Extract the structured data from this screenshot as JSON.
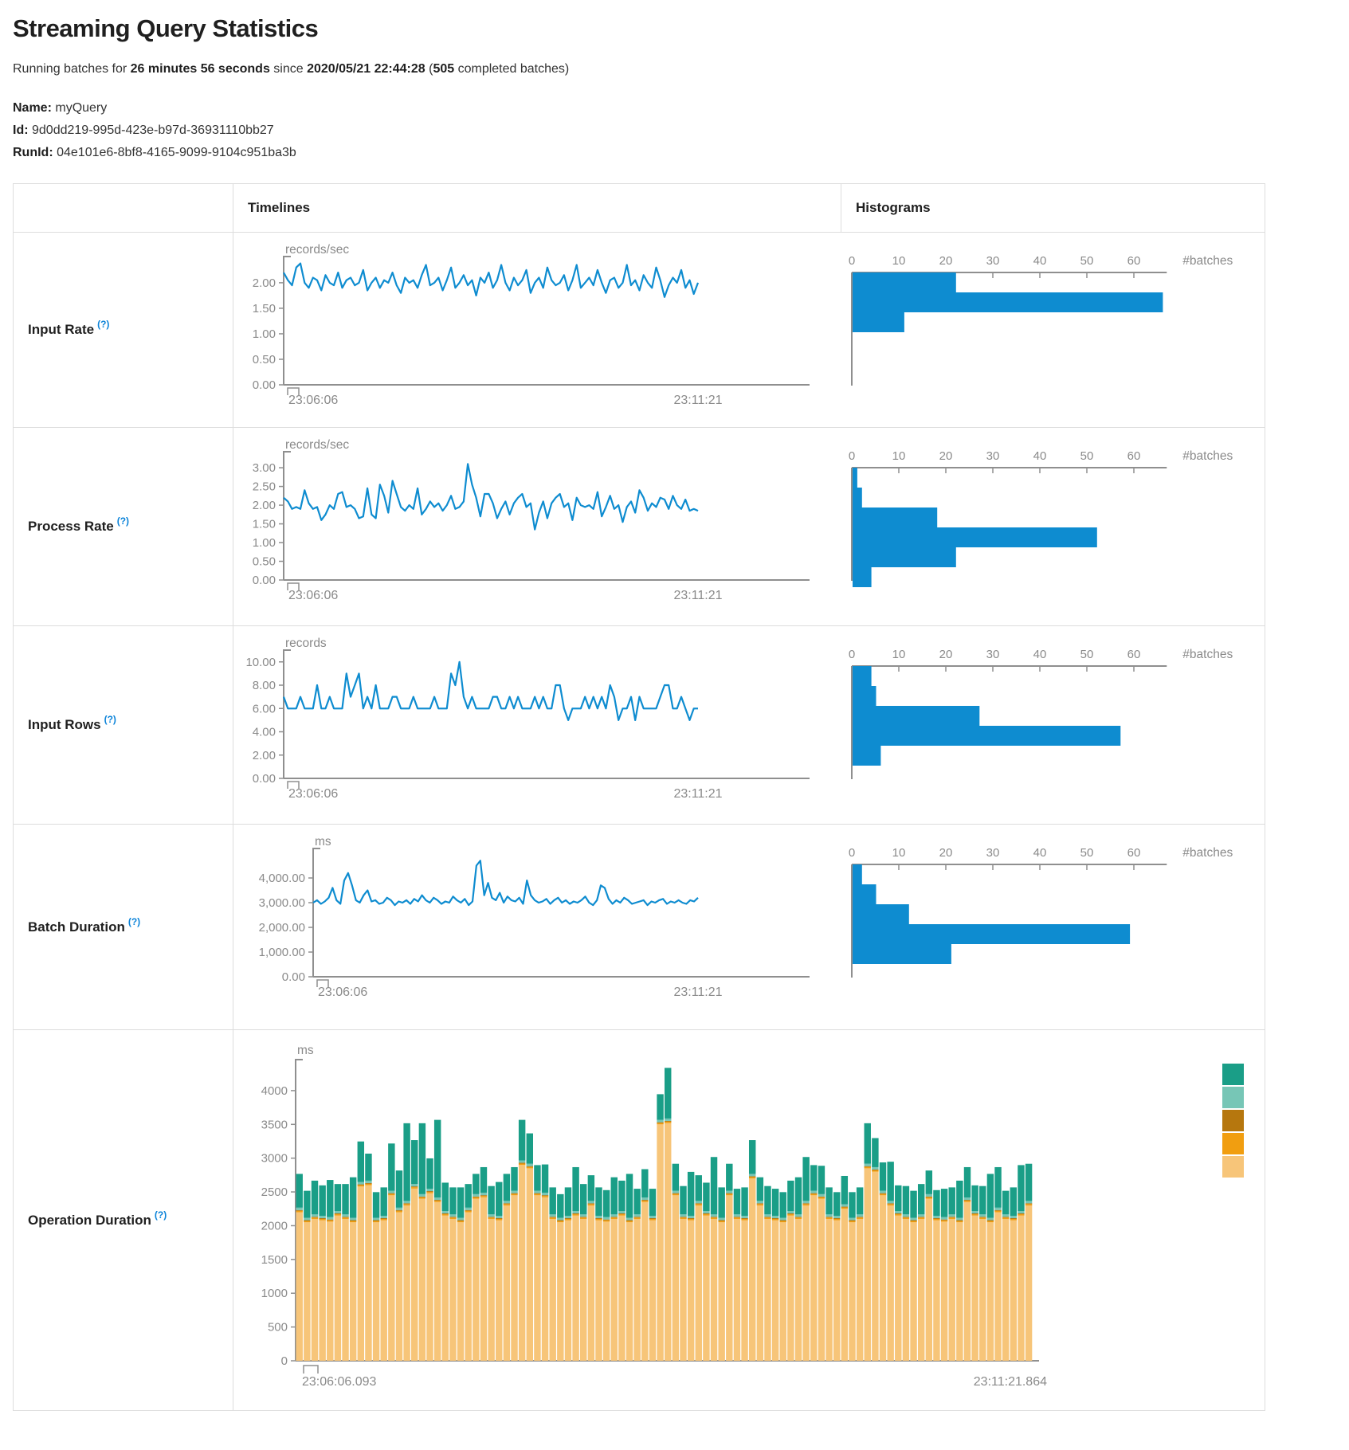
{
  "page": {
    "title": "Streaming Query Statistics",
    "subtitle": {
      "prefix": "Running batches for ",
      "duration": "26 minutes 56 seconds",
      "mid": " since ",
      "start_time": "2020/05/21 22:44:28",
      "open": " (",
      "completed_batches": "505",
      "tail": " completed batches)"
    },
    "meta": {
      "name_label": "Name:",
      "name_value": "myQuery",
      "id_label": "Id:",
      "id_value": "9d0dd219-995d-423e-b97d-36931110bb27",
      "runid_label": "RunId:",
      "runid_value": "04e101e6-8bf8-4165-9099-9104c951ba3b"
    }
  },
  "table": {
    "col_timelines": "Timelines",
    "col_histograms": "Histograms",
    "rows": [
      {
        "label": "Input Rate",
        "help": "(?)"
      },
      {
        "label": "Process Rate",
        "help": "(?)"
      },
      {
        "label": "Input Rows",
        "help": "(?)"
      },
      {
        "label": "Batch Duration",
        "help": "(?)"
      },
      {
        "label": "Operation Duration",
        "help": "(?)"
      }
    ]
  },
  "colors": {
    "accent_blue": "#0E8CD0",
    "axis_gray": "#8F8F8F",
    "text_gray": "#8A8A8A",
    "border": "#DDDDDD",
    "legend": [
      "#1A9E87",
      "#77C6B6",
      "#B6770E",
      "#F19E10",
      "#F7C579"
    ]
  },
  "chart_data": [
    {
      "id": "input-rate-timeline",
      "type": "line",
      "unit": "records/sec",
      "x_start_label": "23:06:06",
      "x_end_label": "23:11:21",
      "ymax": 2.42,
      "y_ticks": [
        0,
        0.5,
        1,
        1.5,
        2
      ],
      "y_tick_labels": [
        "0.00",
        "0.50",
        "1.00",
        "1.50",
        "2.00"
      ],
      "values": [
        2.2,
        2.05,
        1.95,
        2.3,
        2.38,
        2.0,
        1.9,
        2.1,
        2.05,
        1.85,
        2.15,
        2.0,
        1.95,
        2.2,
        1.9,
        2.05,
        2.1,
        1.95,
        2.0,
        2.25,
        1.85,
        2.0,
        2.1,
        1.9,
        2.05,
        2.0,
        2.2,
        1.95,
        1.8,
        2.1,
        2.0,
        2.05,
        1.9,
        2.15,
        2.35,
        1.95,
        2.0,
        2.1,
        1.85,
        2.05,
        2.3,
        1.9,
        2.0,
        2.15,
        1.95,
        2.05,
        1.75,
        2.1,
        2.0,
        2.2,
        1.9,
        2.05,
        2.35,
        2.0,
        1.85,
        2.1,
        1.95,
        2.05,
        2.25,
        1.8,
        2.0,
        2.1,
        1.9,
        2.3,
        2.05,
        1.95,
        2.0,
        2.15,
        1.85,
        2.05,
        2.35,
        1.9,
        2.0,
        2.1,
        1.95,
        2.25,
        2.0,
        1.8,
        2.05,
        2.1,
        1.9,
        2.0,
        2.35,
        1.95,
        2.05,
        1.85,
        2.15,
        2.0,
        1.9,
        2.3,
        2.05,
        1.72,
        1.95,
        2.1,
        2.0,
        2.25,
        1.9,
        2.05,
        1.78,
        2.0
      ]
    },
    {
      "id": "input-rate-histogram",
      "type": "bar",
      "orientation": "horizontal",
      "xlabel": "#batches",
      "x_ticks": [
        0,
        10,
        20,
        30,
        40,
        50,
        60
      ],
      "xmax": 67,
      "values": [
        22,
        66,
        11
      ]
    },
    {
      "id": "process-rate-timeline",
      "type": "line",
      "unit": "records/sec",
      "x_start_label": "23:06:06",
      "x_end_label": "23:11:21",
      "ymax": 3.3,
      "y_ticks": [
        0,
        0.5,
        1,
        1.5,
        2,
        2.5,
        3
      ],
      "y_tick_labels": [
        "0.00",
        "0.50",
        "1.00",
        "1.50",
        "2.00",
        "2.50",
        "3.00"
      ],
      "values": [
        2.2,
        2.1,
        1.9,
        1.95,
        1.9,
        2.4,
        2.05,
        1.9,
        1.95,
        1.6,
        1.75,
        2.0,
        1.9,
        2.3,
        2.35,
        1.95,
        2.0,
        1.9,
        1.65,
        1.7,
        2.45,
        1.75,
        1.65,
        2.55,
        2.25,
        1.8,
        2.65,
        2.3,
        1.95,
        1.85,
        2.0,
        1.9,
        2.45,
        1.75,
        1.9,
        2.1,
        1.95,
        2.05,
        1.85,
        2.0,
        2.25,
        1.9,
        1.95,
        2.1,
        3.1,
        2.55,
        2.2,
        1.7,
        2.3,
        2.3,
        2.05,
        1.65,
        1.9,
        2.1,
        1.75,
        2.05,
        2.2,
        2.3,
        1.95,
        2.05,
        1.35,
        1.8,
        2.1,
        1.65,
        2.05,
        2.2,
        2.3,
        1.95,
        2.05,
        1.6,
        2.2,
        2.0,
        1.95,
        2.0,
        1.9,
        2.35,
        1.7,
        1.95,
        2.25,
        1.9,
        2.0,
        1.55,
        1.95,
        2.1,
        1.8,
        2.4,
        2.2,
        1.85,
        2.05,
        1.95,
        2.2,
        2.15,
        1.9,
        2.25,
        2.0,
        1.9,
        2.15,
        1.85,
        1.9,
        1.85
      ]
    },
    {
      "id": "process-rate-histogram",
      "type": "bar",
      "orientation": "horizontal",
      "xlabel": "#batches",
      "x_ticks": [
        0,
        10,
        20,
        30,
        40,
        50,
        60
      ],
      "xmax": 67,
      "values": [
        1,
        2,
        18,
        52,
        22,
        4
      ]
    },
    {
      "id": "input-rows-timeline",
      "type": "line",
      "unit": "records",
      "x_start_label": "23:06:06",
      "x_end_label": "23:11:21",
      "ymax": 10.6,
      "y_ticks": [
        0,
        2,
        4,
        6,
        8,
        10
      ],
      "y_tick_labels": [
        "0.00",
        "2.00",
        "4.00",
        "6.00",
        "8.00",
        "10.00"
      ],
      "values": [
        7,
        6,
        6,
        6,
        7,
        6,
        6,
        6,
        8,
        6,
        6,
        7,
        6,
        6,
        6,
        9,
        7,
        8,
        9,
        6,
        7,
        6,
        8,
        6,
        6,
        6,
        7,
        7,
        6,
        6,
        6,
        7,
        6,
        6,
        6,
        6,
        7,
        6,
        6,
        6,
        9,
        8,
        10,
        7,
        6,
        7,
        6,
        6,
        6,
        6,
        7,
        7,
        6,
        6,
        7,
        6,
        7,
        6,
        6,
        6,
        7,
        6,
        7,
        6,
        6,
        8,
        8,
        6,
        5,
        6,
        6,
        6,
        7,
        6,
        7,
        6,
        7,
        6,
        8,
        7,
        5,
        6,
        6,
        7,
        5,
        7,
        6,
        6,
        6,
        6,
        7,
        8,
        8,
        6,
        6,
        7,
        6,
        5,
        6,
        6
      ]
    },
    {
      "id": "input-rows-histogram",
      "type": "bar",
      "orientation": "horizontal",
      "xlabel": "#batches",
      "x_ticks": [
        0,
        10,
        20,
        30,
        40,
        50,
        60
      ],
      "xmax": 67,
      "values": [
        4,
        5,
        27,
        57,
        6
      ]
    },
    {
      "id": "batch-duration-timeline",
      "type": "line",
      "unit": "ms",
      "x_start_label": "23:06:06",
      "x_end_label": "23:11:21",
      "ymax": 5000,
      "y_ticks": [
        0,
        1000,
        2000,
        3000,
        4000
      ],
      "y_tick_labels": [
        "0.00",
        "1,000.00",
        "2,000.00",
        "3,000.00",
        "4,000.00"
      ],
      "values": [
        3000,
        3100,
        2950,
        3050,
        3200,
        3600,
        3100,
        2950,
        3900,
        4200,
        3700,
        3100,
        3000,
        3300,
        3500,
        3050,
        3100,
        2950,
        3000,
        3200,
        3100,
        2900,
        3050,
        3000,
        3100,
        2950,
        3150,
        3050,
        3300,
        3100,
        3000,
        3200,
        3100,
        2950,
        3050,
        3000,
        3250,
        3100,
        3000,
        3150,
        2900,
        3050,
        4500,
        4700,
        3300,
        3800,
        3200,
        3100,
        3400,
        3000,
        3250,
        3100,
        3050,
        3200,
        2950,
        3900,
        3300,
        3100,
        3000,
        3050,
        3150,
        2950,
        3100,
        3200,
        3000,
        3100,
        2950,
        3050,
        3000,
        3100,
        3250,
        3000,
        2900,
        3100,
        3700,
        3600,
        3150,
        2950,
        3100,
        3000,
        3200,
        3100,
        2950,
        3000,
        3050,
        3100,
        2900,
        3050,
        3000,
        3100,
        3150,
        2950,
        3050,
        3000,
        3100,
        3000,
        2950,
        3100,
        3050,
        3200
      ]
    },
    {
      "id": "batch-duration-histogram",
      "type": "bar",
      "orientation": "horizontal",
      "xlabel": "#batches",
      "x_ticks": [
        0,
        10,
        20,
        30,
        40,
        50,
        60
      ],
      "xmax": 67,
      "values": [
        2,
        5,
        12,
        59,
        21
      ]
    },
    {
      "id": "operation-duration-chart",
      "type": "stacked-bar",
      "unit": "ms",
      "x_start_label": "23:06:06.093",
      "x_end_label": "23:11:21.864",
      "ymax": 4400,
      "y_ticks": [
        0,
        500,
        1000,
        1500,
        2000,
        2500,
        3000,
        3500,
        4000
      ],
      "legend_colors": [
        "#1A9E87",
        "#77C6B6",
        "#B6770E",
        "#F19E10",
        "#F7C579"
      ],
      "series": [
        {
          "name": "tan",
          "color": "#F7C579",
          "values": [
            2200,
            2050,
            2100,
            2080,
            2060,
            2150,
            2100,
            2050,
            2580,
            2600,
            2050,
            2080,
            2450,
            2200,
            2300,
            2550,
            2400,
            2480,
            2350,
            2150,
            2100,
            2050,
            2200,
            2400,
            2420,
            2100,
            2080,
            2300,
            2450,
            2900,
            2850,
            2450,
            2420,
            2100,
            2050,
            2080,
            2150,
            2100,
            2300,
            2080,
            2060,
            2100,
            2150,
            2050,
            2100,
            2350,
            2080,
            3500,
            3520,
            2450,
            2100,
            2080,
            2300,
            2150,
            2100,
            2050,
            2450,
            2100,
            2080,
            2700,
            2300,
            2100,
            2080,
            2050,
            2150,
            2100,
            2300,
            2450,
            2400,
            2100,
            2080,
            2250,
            2050,
            2100,
            2850,
            2800,
            2450,
            2300,
            2150,
            2100,
            2050,
            2100,
            2400,
            2080,
            2060,
            2100,
            2050,
            2350,
            2150,
            2100,
            2050,
            2200,
            2100,
            2080,
            2150,
            2300
          ]
        },
        {
          "name": "orange",
          "color": "#F19E10",
          "const": 20
        },
        {
          "name": "brown",
          "color": "#B6770E",
          "const": 12
        },
        {
          "name": "seafoam",
          "color": "#77C6B6",
          "const": 35
        },
        {
          "name": "teal",
          "color": "#1A9E87",
          "values": [
            500,
            400,
            500,
            450,
            550,
            400,
            450,
            600,
            600,
            400,
            380,
            420,
            700,
            550,
            1150,
            650,
            1050,
            450,
            1150,
            420,
            400,
            450,
            350,
            300,
            380,
            420,
            500,
            400,
            350,
            600,
            450,
            380,
            420,
            400,
            350,
            420,
            650,
            450,
            380,
            420,
            400,
            550,
            450,
            650,
            380,
            420,
            400,
            380,
            750,
            400,
            420,
            650,
            380,
            420,
            850,
            450,
            400,
            380,
            420,
            500,
            350,
            420,
            400,
            380,
            450,
            550,
            650,
            380,
            420,
            400,
            350,
            420,
            380,
            400,
            600,
            430,
            420,
            580,
            380,
            420,
            400,
            450,
            350,
            380,
            420,
            400,
            550,
            450,
            380,
            420,
            650,
            600,
            350,
            420,
            680,
            550
          ]
        }
      ]
    }
  ]
}
